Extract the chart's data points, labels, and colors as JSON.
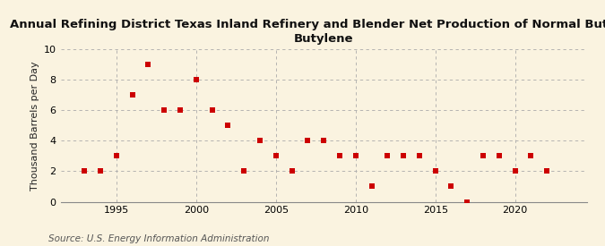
{
  "title": "Annual Refining District Texas Inland Refinery and Blender Net Production of Normal Butane-\nButylene",
  "ylabel": "Thousand Barrels per Day",
  "source": "Source: U.S. Energy Information Administration",
  "background_color": "#faf3e0",
  "plot_background_color": "#faf3e0",
  "marker_color": "#cc0000",
  "years": [
    1993,
    1994,
    1995,
    1996,
    1997,
    1998,
    1999,
    2000,
    2001,
    2002,
    2003,
    2004,
    2005,
    2006,
    2007,
    2008,
    2009,
    2010,
    2011,
    2012,
    2013,
    2014,
    2015,
    2016,
    2017,
    2018,
    2019,
    2020,
    2021,
    2022
  ],
  "values": [
    2,
    2,
    3,
    7,
    9,
    6,
    6,
    8,
    6,
    5,
    2,
    4,
    3,
    2,
    4,
    4,
    3,
    3,
    1,
    3,
    3,
    3,
    2,
    1,
    0,
    3,
    3,
    2,
    3,
    2
  ],
  "xlim": [
    1991.5,
    2024.5
  ],
  "ylim": [
    0,
    10
  ],
  "yticks": [
    0,
    2,
    4,
    6,
    8,
    10
  ],
  "xticks": [
    1995,
    2000,
    2005,
    2010,
    2015,
    2020
  ],
  "grid_color": "#aaaaaa",
  "title_fontsize": 9.5,
  "ylabel_fontsize": 8,
  "tick_fontsize": 8,
  "source_fontsize": 7.5,
  "marker_size": 16
}
